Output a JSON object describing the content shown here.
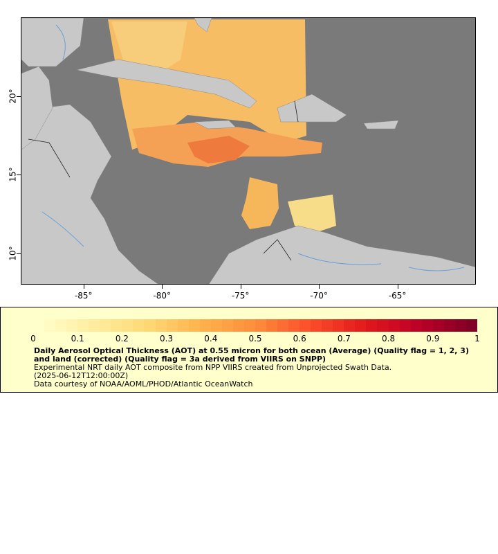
{
  "map": {
    "x_axis": {
      "ticks": [
        "-85°",
        "-80°",
        "-75°",
        "-70°",
        "-65°"
      ],
      "values": [
        -85,
        -80,
        -75,
        -70,
        -65
      ]
    },
    "y_axis": {
      "ticks": [
        "20°",
        "15°",
        "10°"
      ],
      "values": [
        20,
        15,
        10
      ]
    },
    "lon_range": [
      -89,
      -60
    ],
    "lat_range": [
      8,
      25
    ],
    "colors": {
      "ocean": "#7a7a7a",
      "land": "#c8c8c8",
      "rivers": "#6a9fd8",
      "borders": "#222222"
    }
  },
  "legend": {
    "colorbar_ticks": [
      "0",
      "0.1",
      "0.2",
      "0.3",
      "0.4",
      "0.5",
      "0.6",
      "0.7",
      "0.8",
      "0.9",
      "1"
    ],
    "colorbar_range": [
      0,
      1
    ],
    "colorbar_colors": [
      "#ffffcc",
      "#ffeda0",
      "#fed976",
      "#feb24c",
      "#fd8d3c",
      "#fc4e2a",
      "#e31a1c",
      "#bd0026",
      "#800026"
    ],
    "title": "Daily Aerosol Optical Thickness (AOT) at 0.55 micron for both ocean (Average) (Quality flag = 1, 2, 3) and land (corrected) (Quality flag = 3a derived from VIIRS on SNPP)",
    "line1": "Experimental NRT daily AOT composite from NPP VIIRS created from Unprojected Swath Data.",
    "line2": "(2025-06-12T12:00:00Z)",
    "line3": "Data courtesy of NOAA/AOML/PHOD/Atlantic OceanWatch"
  }
}
